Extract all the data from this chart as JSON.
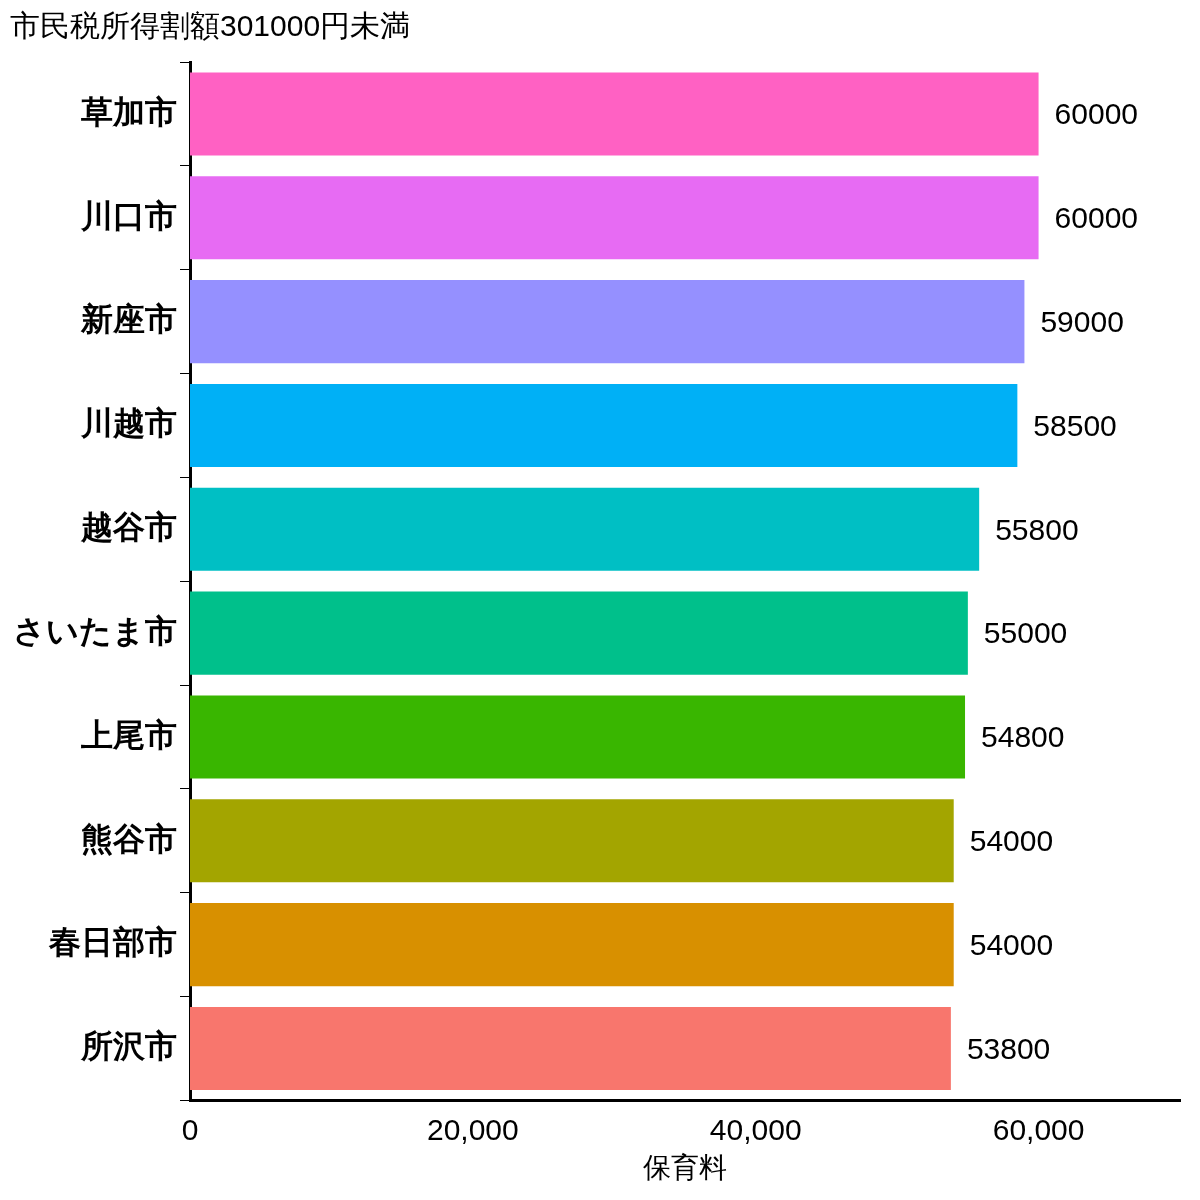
{
  "chart_data": {
    "type": "bar",
    "orientation": "horizontal",
    "title": "市民税所得割額301000円未満",
    "xlabel": "保育料",
    "categories": [
      "草加市",
      "川口市",
      "新座市",
      "川越市",
      "越谷市",
      "さいたま市",
      "上尾市",
      "熊谷市",
      "春日部市",
      "所沢市"
    ],
    "values": [
      60000,
      60000,
      59000,
      58500,
      55800,
      55000,
      54800,
      54000,
      54000,
      53800
    ],
    "colors": [
      "#ff61c3",
      "#e76bf3",
      "#9590ff",
      "#00b0f6",
      "#00bfc4",
      "#00c08b",
      "#39b600",
      "#a3a500",
      "#d89000",
      "#f8766d"
    ],
    "xlim": [
      0,
      70000
    ],
    "xticks": [
      0,
      {
        "value": 20000,
        "label": "20,000"
      },
      {
        "value": 40000,
        "label": "40,000"
      },
      {
        "value": 60000,
        "label": "60,000"
      }
    ],
    "grid": false,
    "legend": false,
    "data_labels": true
  }
}
